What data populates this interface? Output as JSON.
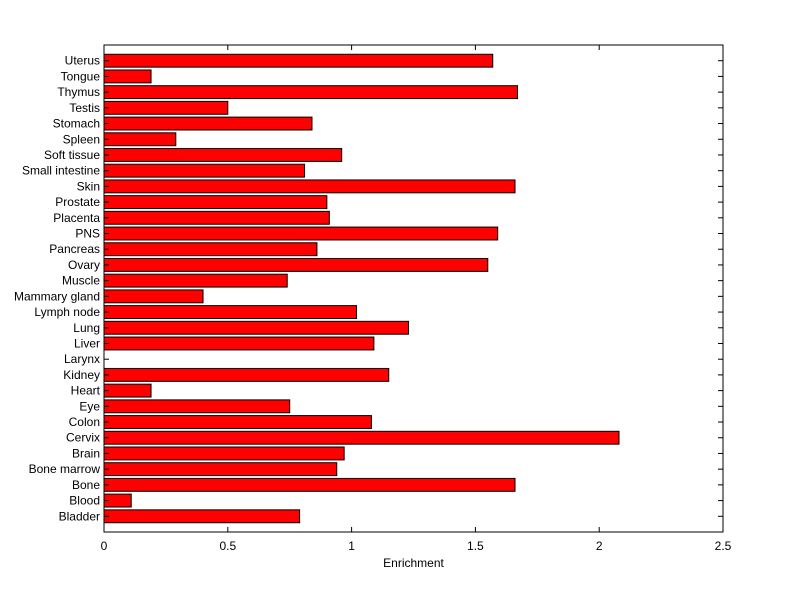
{
  "colors": {
    "bar_fill": "#ff0000",
    "bar_stroke": "#000000",
    "axis": "#000000",
    "background": "#ffffff"
  },
  "chart_data": {
    "type": "bar",
    "orientation": "horizontal",
    "categories": [
      "Uterus",
      "Tongue",
      "Thymus",
      "Testis",
      "Stomach",
      "Spleen",
      "Soft tissue",
      "Small intestine",
      "Skin",
      "Prostate",
      "Placenta",
      "PNS",
      "Pancreas",
      "Ovary",
      "Muscle",
      "Mammary gland",
      "Lymph node",
      "Lung",
      "Liver",
      "Larynx",
      "Kidney",
      "Heart",
      "Eye",
      "Colon",
      "Cervix",
      "Brain",
      "Bone marrow",
      "Bone",
      "Blood",
      "Bladder"
    ],
    "values": [
      1.57,
      0.19,
      1.67,
      0.5,
      0.84,
      0.29,
      0.96,
      0.81,
      1.66,
      0.9,
      0.91,
      1.59,
      0.86,
      1.55,
      0.74,
      0.4,
      1.02,
      1.23,
      1.09,
      0.0,
      1.15,
      0.19,
      0.75,
      1.08,
      2.08,
      0.97,
      0.94,
      1.66,
      0.11,
      0.79
    ],
    "title": "",
    "xlabel": "Enrichment",
    "ylabel": "",
    "xlim": [
      0,
      2.5
    ],
    "xticks": [
      0,
      0.5,
      1,
      1.5,
      2,
      2.5
    ],
    "xtick_labels": [
      "0",
      "0.5",
      "1",
      "1.5",
      "2",
      "2.5"
    ],
    "grid": false,
    "legend": "none"
  }
}
